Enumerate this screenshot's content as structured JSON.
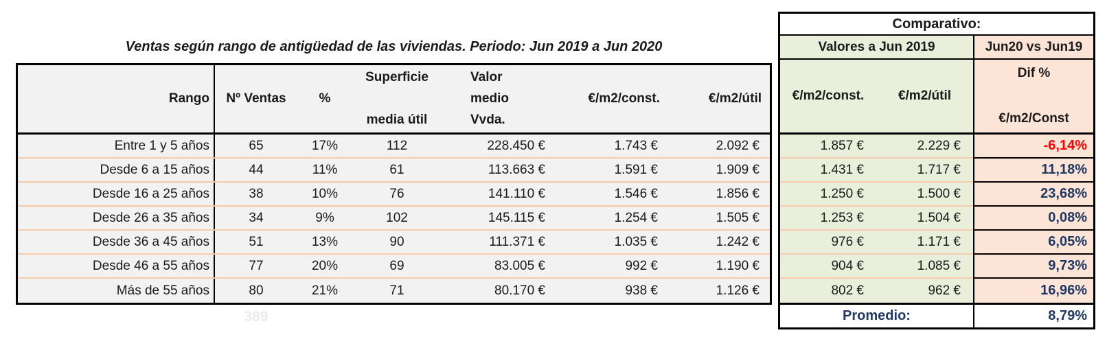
{
  "title": "Ventas según rango de antigüedad de las viviendas. Periodo: Jun 2019 a Jun 2020",
  "main_header": {
    "rango": "Rango",
    "n_ventas": "Nº Ventas",
    "pct": "%",
    "superficie_line1": "Superficie",
    "superficie_line2": "media útil",
    "valor_line1": "Valor",
    "valor_line2": "medio",
    "valor_line3": "Vvda.",
    "eur_m2_const": "€/m2/const.",
    "eur_m2_util": "€/m2/útil"
  },
  "comparative": {
    "title": "Comparativo:",
    "group_left": "Valores a Jun 2019",
    "group_right": "Jun20 vs Jun19",
    "col_const": "€/m2/const.",
    "col_util": "€/m2/útil",
    "dif_line1": "Dif %",
    "dif_line2": "€/m2/Const",
    "promedio_label": "Promedio:",
    "promedio_value": "8,79%"
  },
  "rows": [
    {
      "rango": "Entre 1 y 5 años",
      "ventas": "65",
      "pct": "17%",
      "superficie": "112",
      "valor": "228.450 €",
      "const": "1.743 €",
      "util": "2.092 €",
      "const_2019": "1.857 €",
      "util_2019": "2.229 €",
      "dif": "-6,14%"
    },
    {
      "rango": "Desde 6 a 15 años",
      "ventas": "44",
      "pct": "11%",
      "superficie": "61",
      "valor": "113.663 €",
      "const": "1.591 €",
      "util": "1.909 €",
      "const_2019": "1.431 €",
      "util_2019": "1.717 €",
      "dif": "11,18%"
    },
    {
      "rango": "Desde 16 a 25 años",
      "ventas": "38",
      "pct": "10%",
      "superficie": "76",
      "valor": "141.110 €",
      "const": "1.546 €",
      "util": "1.856 €",
      "const_2019": "1.250 €",
      "util_2019": "1.500 €",
      "dif": "23,68%"
    },
    {
      "rango": "Desde 26 a 35 años",
      "ventas": "34",
      "pct": "9%",
      "superficie": "102",
      "valor": "145.115 €",
      "const": "1.254 €",
      "util": "1.505 €",
      "const_2019": "1.253 €",
      "util_2019": "1.504 €",
      "dif": "0,08%"
    },
    {
      "rango": "Desde 36 a 45 años",
      "ventas": "51",
      "pct": "13%",
      "superficie": "90",
      "valor": "111.371 €",
      "const": "1.035 €",
      "util": "1.242 €",
      "const_2019": "976 €",
      "util_2019": "1.171 €",
      "dif": "6,05%"
    },
    {
      "rango": "Desde 46 a 55 años",
      "ventas": "77",
      "pct": "20%",
      "superficie": "69",
      "valor": "83.005 €",
      "const": "992 €",
      "util": "1.190 €",
      "const_2019": "904 €",
      "util_2019": "1.085 €",
      "dif": "9,73%"
    },
    {
      "rango": "Más de 55 años",
      "ventas": "80",
      "pct": "21%",
      "superficie": "71",
      "valor": "80.170 €",
      "const": "938 €",
      "util": "1.126 €",
      "const_2019": "802 €",
      "util_2019": "962 €",
      "dif": "16,96%"
    }
  ],
  "total_ventas_faint": "389",
  "colors": {
    "gray_bg": "#f2f2f2",
    "green_bg": "#e9efdb",
    "peach_bg": "#fce4d6",
    "row_separator": "#f8cbad",
    "navy": "#1f3864",
    "red": "#ff0000",
    "border": "#000000"
  }
}
